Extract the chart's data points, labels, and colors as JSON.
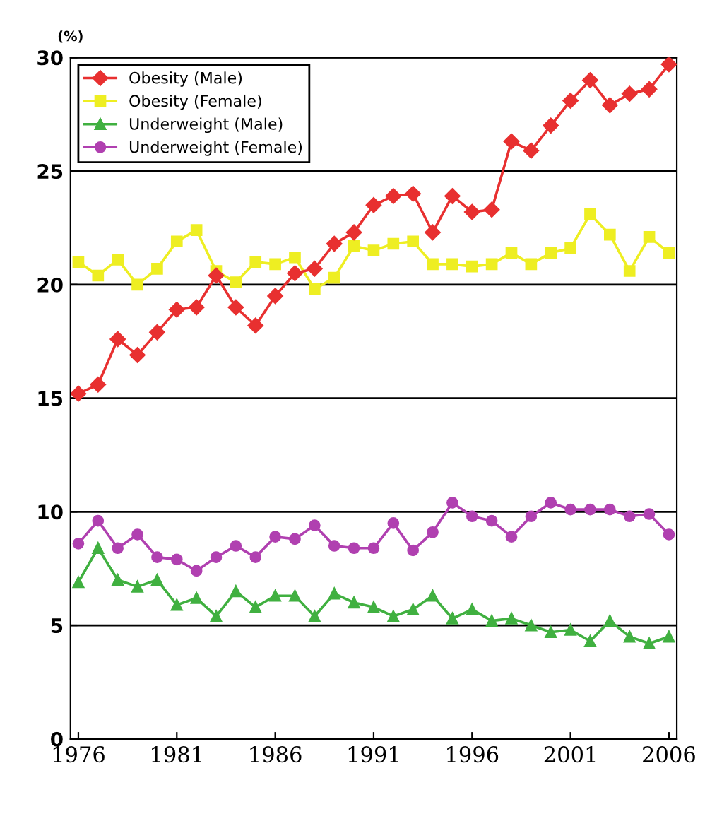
{
  "chart_data": {
    "type": "line",
    "ylabel": "(%)",
    "x": [
      1976,
      1977,
      1978,
      1979,
      1980,
      1981,
      1982,
      1983,
      1984,
      1985,
      1986,
      1987,
      1988,
      1989,
      1990,
      1991,
      1992,
      1993,
      1994,
      1995,
      1996,
      1997,
      1998,
      1999,
      2000,
      2001,
      2002,
      2003,
      2004,
      2005,
      2006
    ],
    "series": [
      {
        "name": "Obesity (Male)",
        "color": "#e83030",
        "marker": "diamond",
        "values": [
          15.2,
          15.6,
          17.6,
          16.9,
          17.9,
          18.9,
          19.0,
          20.4,
          19.0,
          18.2,
          19.5,
          20.5,
          20.7,
          21.8,
          22.3,
          23.5,
          23.9,
          24.0,
          22.3,
          23.9,
          23.2,
          23.3,
          26.3,
          25.9,
          27.0,
          28.1,
          29.0,
          27.9,
          28.4,
          28.6,
          29.7
        ]
      },
      {
        "name": "Obesity (Female)",
        "color": "#eeee22",
        "marker": "square",
        "values": [
          21.0,
          20.4,
          21.1,
          20.0,
          20.7,
          21.9,
          22.4,
          20.6,
          20.1,
          21.0,
          20.9,
          21.2,
          19.8,
          20.3,
          21.7,
          21.5,
          21.8,
          21.9,
          20.9,
          20.9,
          20.8,
          20.9,
          21.4,
          20.9,
          21.4,
          21.6,
          23.1,
          22.2,
          20.6,
          22.1,
          21.4
        ]
      },
      {
        "name": "Underweight (Male)",
        "color": "#40b040",
        "marker": "triangle",
        "values": [
          6.9,
          8.4,
          7.0,
          6.7,
          7.0,
          5.9,
          6.2,
          5.4,
          6.5,
          5.8,
          6.3,
          6.3,
          5.4,
          6.4,
          6.0,
          5.8,
          5.4,
          5.7,
          6.3,
          5.3,
          5.7,
          5.2,
          5.3,
          5.0,
          4.7,
          4.8,
          4.3,
          5.2,
          4.5,
          4.2,
          4.5
        ]
      },
      {
        "name": "Underweight (Female)",
        "color": "#b040b0",
        "marker": "circle",
        "values": [
          8.6,
          9.6,
          8.4,
          9.0,
          8.0,
          7.9,
          7.4,
          8.0,
          8.5,
          8.0,
          8.9,
          8.8,
          9.4,
          8.5,
          8.4,
          8.4,
          9.5,
          8.3,
          9.1,
          10.4,
          9.8,
          9.6,
          8.9,
          9.8,
          10.4,
          10.1,
          10.1,
          10.1,
          9.8,
          9.9,
          9.0
        ]
      }
    ],
    "xlim": [
      1975.6,
      2006.4
    ],
    "xticks": [
      1976,
      1981,
      1986,
      1991,
      1996,
      2001,
      2006
    ],
    "ylim": [
      0,
      30
    ],
    "yticks": [
      0,
      5,
      10,
      15,
      20,
      25,
      30
    ],
    "grid": "y",
    "legend": "top left",
    "line_style": "solid"
  }
}
